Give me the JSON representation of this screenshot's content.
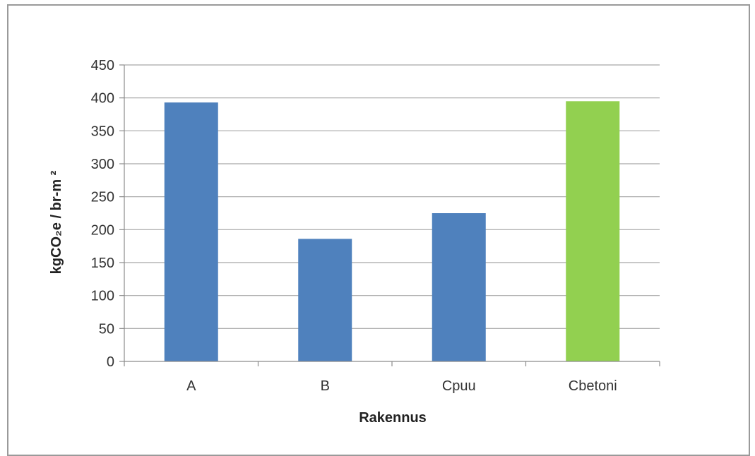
{
  "chart_data": {
    "type": "bar",
    "title": "",
    "xlabel": "Rakennus",
    "ylabel": "kgCO₂e / br-m ²",
    "categories": [
      "A",
      "B",
      "Cpuu",
      "Cbetoni"
    ],
    "values": [
      393,
      186,
      225,
      395
    ],
    "bar_colors": [
      "#4f81bd",
      "#4f81bd",
      "#4f81bd",
      "#92d050"
    ],
    "ylim": [
      0,
      450
    ],
    "yticks": [
      0,
      50,
      100,
      150,
      200,
      250,
      300,
      350,
      400,
      450
    ],
    "grid": true,
    "legend": "none"
  }
}
